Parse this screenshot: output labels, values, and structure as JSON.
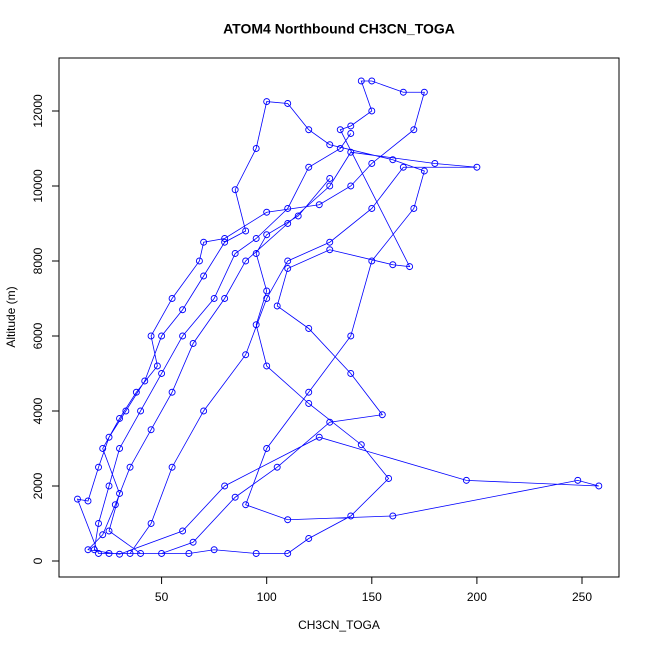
{
  "chart_data": {
    "type": "scatter",
    "connect": true,
    "marker": "open-circle",
    "color": "#0000ff",
    "title": "ATOM4 Northbound CH3CN_TOGA",
    "x_label": "CH3CN_TOGA",
    "y_label": "Altitude (m)",
    "xlim": [
      1.2,
      267.6
    ],
    "ylim": [
      -427,
      13413
    ],
    "xticks": [
      50,
      100,
      150,
      200,
      250
    ],
    "yticks": [
      0,
      2000,
      4000,
      6000,
      8000,
      10000,
      12000
    ],
    "x": [
      140,
      135,
      120,
      110,
      95,
      85,
      75,
      60,
      50,
      40,
      30,
      25,
      20,
      18,
      25,
      35,
      45,
      55,
      70,
      90,
      100,
      110,
      130,
      150,
      165,
      200,
      180,
      140,
      130,
      110,
      90,
      80,
      65,
      55,
      45,
      35,
      28,
      22,
      15,
      30,
      60,
      80,
      125,
      195,
      258,
      248,
      160,
      110,
      90,
      100,
      120,
      140,
      150,
      170,
      175,
      160,
      130,
      120,
      110,
      100,
      95,
      85,
      90,
      80,
      70,
      60,
      50,
      42,
      33,
      25,
      20,
      15,
      10,
      20,
      50,
      65,
      85,
      105,
      130,
      155,
      140,
      120,
      105,
      110,
      130,
      160,
      168,
      135,
      140,
      150,
      145,
      150,
      165,
      175,
      170,
      150,
      140,
      125,
      100,
      80,
      70,
      68,
      55,
      45,
      48,
      38,
      30,
      22,
      30,
      25,
      40,
      63,
      75,
      95,
      110,
      120,
      140,
      158,
      145,
      120,
      100,
      95,
      100,
      95,
      100,
      115,
      130
    ],
    "values": [
      11400,
      11000,
      10500,
      9400,
      8600,
      8200,
      7000,
      6000,
      5000,
      4000,
      3000,
      2000,
      1000,
      300,
      200,
      200,
      1000,
      2500,
      4000,
      5500,
      7000,
      8000,
      8500,
      9400,
      10500,
      10500,
      10600,
      10900,
      10000,
      9000,
      8000,
      7000,
      5800,
      4500,
      3500,
      2500,
      1500,
      700,
      300,
      180,
      800,
      2000,
      3300,
      2150,
      2000,
      2150,
      1200,
      1100,
      1500,
      3000,
      4500,
      6000,
      8000,
      9400,
      10400,
      10700,
      11100,
      11500,
      12200,
      12250,
      11000,
      9900,
      8800,
      8500,
      7600,
      6700,
      6000,
      4800,
      4000,
      3300,
      2500,
      1600,
      1650,
      200,
      200,
      500,
      1700,
      2500,
      3700,
      3900,
      5000,
      6200,
      6800,
      7800,
      8300,
      7900,
      7850,
      11500,
      11600,
      12000,
      12800,
      12800,
      12500,
      12500,
      11500,
      10600,
      10000,
      9500,
      9300,
      8600,
      8500,
      8000,
      7000,
      6000,
      5200,
      4500,
      3800,
      3000,
      1800,
      800,
      200,
      200,
      300,
      200,
      200,
      600,
      1200,
      2200,
      3100,
      4200,
      5200,
      6300,
      7200,
      8200,
      8700,
      9200,
      10200
    ]
  }
}
